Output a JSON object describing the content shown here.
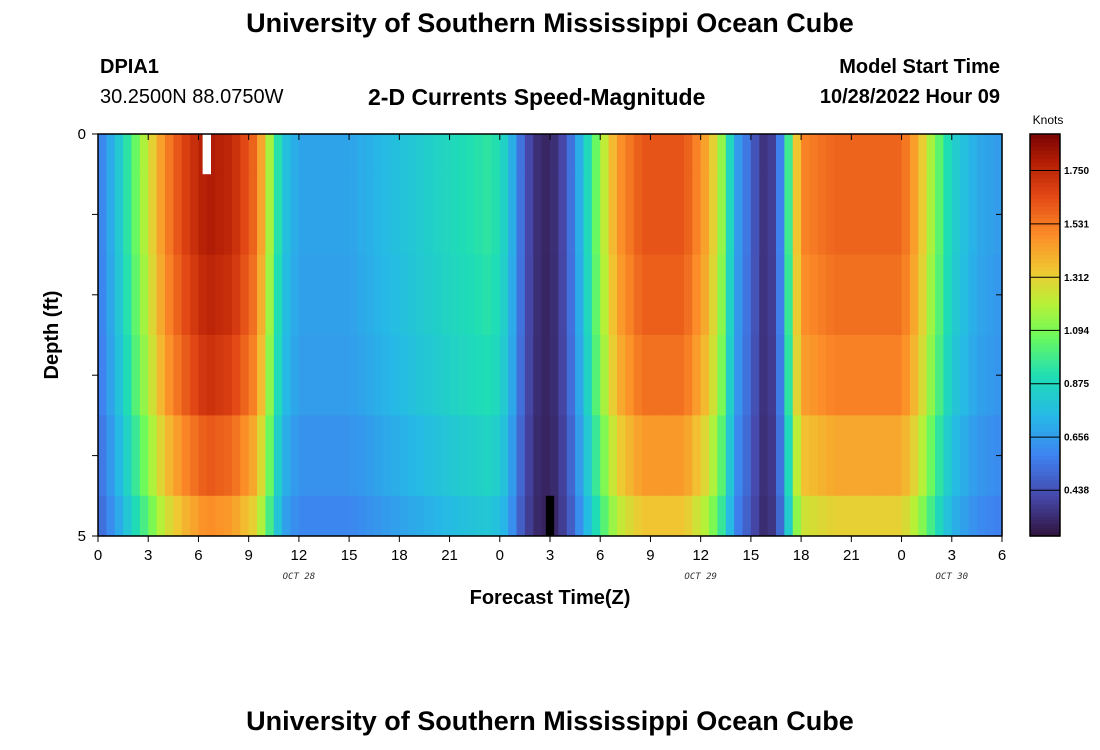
{
  "header": {
    "title": "University of Southern Mississippi Ocean Cube",
    "station": "DPIA1",
    "coords": "30.2500N  88.0750W",
    "subtitle": "2-D Currents Speed-Magnitude",
    "model_start_label": "Model Start Time",
    "model_start_value": "10/28/2022 Hour 09"
  },
  "footer": {
    "title": "University of Southern Mississippi Ocean Cube"
  },
  "chart_data": {
    "type": "heatmap",
    "title": "2-D Currents Speed-Magnitude",
    "xlabel": "Forecast Time(Z)",
    "ylabel": "Depth (ft)",
    "colorbar_label": "Knots",
    "colorbar_ticks": [
      0.438,
      0.656,
      0.875,
      1.094,
      1.312,
      1.531,
      1.75
    ],
    "colorbar_tick_labels": [
      "0.438",
      "0.656",
      "0.875",
      "1.094",
      "1.312",
      "1.531",
      "1.750"
    ],
    "value_range": [
      0.25,
      1.9
    ],
    "x_range_hours": [
      0,
      54
    ],
    "x_ticks_hours": [
      0,
      3,
      6,
      9,
      12,
      15,
      18,
      21,
      24,
      27,
      30,
      33,
      36,
      39,
      42,
      45,
      48,
      51,
      54
    ],
    "x_tick_labels": [
      "0",
      "3",
      "6",
      "9",
      "12",
      "15",
      "18",
      "21",
      "0",
      "3",
      "6",
      "9",
      "12",
      "15",
      "18",
      "21",
      "0",
      "3",
      "6"
    ],
    "date_labels": [
      {
        "hour": 12,
        "label": "OCT 28"
      },
      {
        "hour": 36,
        "label": "OCT 29"
      },
      {
        "hour": 51,
        "label": "OCT 30"
      }
    ],
    "y_range": [
      0,
      5
    ],
    "y_ticks": [
      0,
      1,
      2,
      3,
      4,
      5
    ],
    "y_tick_labels": [
      "0",
      "",
      "",
      "",
      "",
      "5"
    ],
    "depth_levels": [
      0,
      1,
      2,
      3,
      4,
      5
    ],
    "profile_keys": [
      {
        "hour": 0,
        "v": 0.55
      },
      {
        "hour": 1,
        "v": 0.75
      },
      {
        "hour": 2,
        "v": 1.0
      },
      {
        "hour": 3,
        "v": 1.25
      },
      {
        "hour": 4,
        "v": 1.5
      },
      {
        "hour": 5,
        "v": 1.65
      },
      {
        "hour": 6.5,
        "v": 1.8
      },
      {
        "hour": 8,
        "v": 1.75
      },
      {
        "hour": 9.5,
        "v": 1.55
      },
      {
        "hour": 10,
        "v": 1.3
      },
      {
        "hour": 10.5,
        "v": 1.05
      },
      {
        "hour": 11,
        "v": 0.8
      },
      {
        "hour": 12,
        "v": 0.68
      },
      {
        "hour": 15,
        "v": 0.68
      },
      {
        "hour": 18,
        "v": 0.78
      },
      {
        "hour": 21,
        "v": 0.88
      },
      {
        "hour": 23.5,
        "v": 0.95
      },
      {
        "hour": 24.5,
        "v": 0.82
      },
      {
        "hour": 25,
        "v": 0.6
      },
      {
        "hour": 26,
        "v": 0.35
      },
      {
        "hour": 27,
        "v": 0.3
      },
      {
        "hour": 28,
        "v": 0.45
      },
      {
        "hour": 29,
        "v": 0.8
      },
      {
        "hour": 30,
        "v": 1.15
      },
      {
        "hour": 31,
        "v": 1.45
      },
      {
        "hour": 32.5,
        "v": 1.62
      },
      {
        "hour": 35,
        "v": 1.62
      },
      {
        "hour": 36.5,
        "v": 1.4
      },
      {
        "hour": 37.5,
        "v": 1.05
      },
      {
        "hour": 38,
        "v": 0.7
      },
      {
        "hour": 39,
        "v": 0.5
      },
      {
        "hour": 39.7,
        "v": 0.35
      },
      {
        "hour": 40.5,
        "v": 0.4
      },
      {
        "hour": 41,
        "v": 0.75
      },
      {
        "hour": 41.5,
        "v": 1.2
      },
      {
        "hour": 42,
        "v": 1.5
      },
      {
        "hour": 44,
        "v": 1.58
      },
      {
        "hour": 48,
        "v": 1.58
      },
      {
        "hour": 49,
        "v": 1.4
      },
      {
        "hour": 50,
        "v": 1.1
      },
      {
        "hour": 51,
        "v": 0.85
      },
      {
        "hour": 52.5,
        "v": 0.7
      },
      {
        "hour": 54,
        "v": 0.65
      }
    ],
    "depth_factor": [
      1.0,
      1.0,
      0.98,
      0.95,
      0.88,
      0.8
    ],
    "missing_cells": [
      {
        "hour": 6.5,
        "depth_start": 0,
        "depth_end": 0.5,
        "color": "#ffffff"
      },
      {
        "hour": 27,
        "depth_start": 4.5,
        "depth_end": 5,
        "color": "#000000"
      }
    ]
  }
}
